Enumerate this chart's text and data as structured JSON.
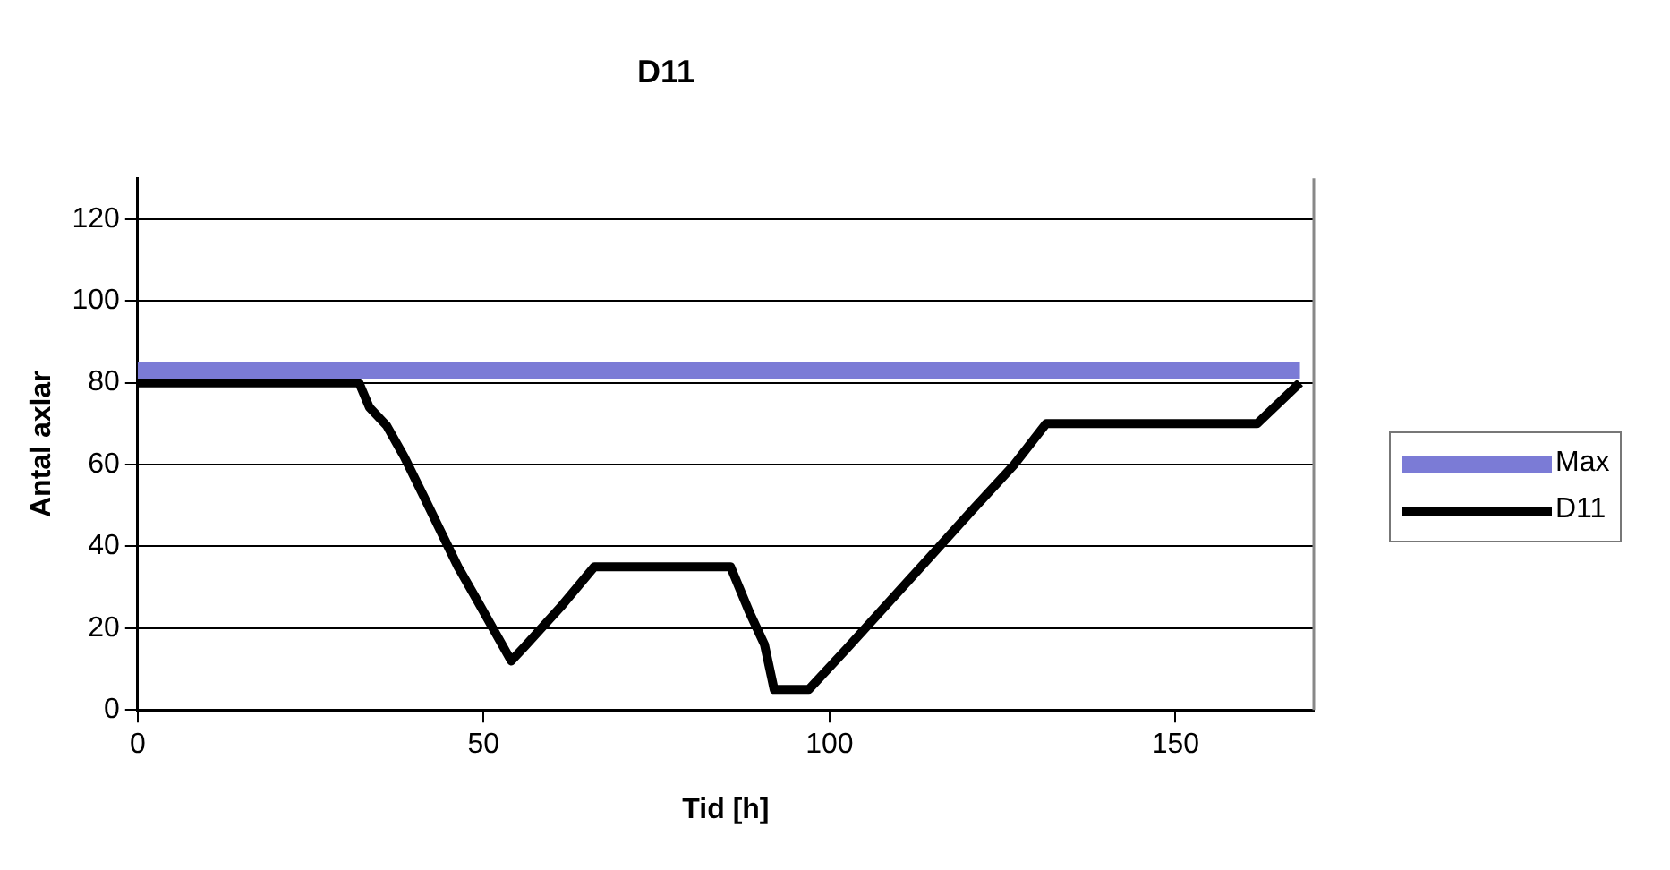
{
  "chart_data": {
    "type": "line",
    "title": "D11",
    "xlabel": "Tid [h]",
    "ylabel": "Antal axlar",
    "xlim": [
      0,
      170
    ],
    "xticks": [
      0,
      50,
      100,
      150
    ],
    "ylim": [
      0,
      130
    ],
    "yticks": [
      0,
      20,
      40,
      60,
      80,
      100,
      120
    ],
    "grid": "y",
    "legend": "right",
    "marker": "none",
    "line_style": "solid",
    "series": [
      {
        "name": "Max",
        "color": "#7b7bd6",
        "x": [
          0,
          168
        ],
        "values": [
          83,
          83
        ]
      },
      {
        "name": "D11",
        "color": "#000000",
        "x": [
          0,
          32,
          33.5,
          36,
          38.5,
          41.3,
          44,
          46.3,
          49,
          54,
          56,
          61.4,
          66,
          85.7,
          88.4,
          90.6,
          92,
          97,
          102.5,
          108.4,
          114.3,
          120.7,
          126.7,
          131.3,
          161.8,
          168
        ],
        "values": [
          80,
          80,
          74,
          69.5,
          62,
          52.4,
          43,
          35,
          27,
          12,
          15.6,
          25.7,
          35,
          35,
          24,
          16,
          5,
          5,
          15,
          26,
          37,
          49,
          60,
          70,
          70,
          80
        ]
      }
    ]
  }
}
